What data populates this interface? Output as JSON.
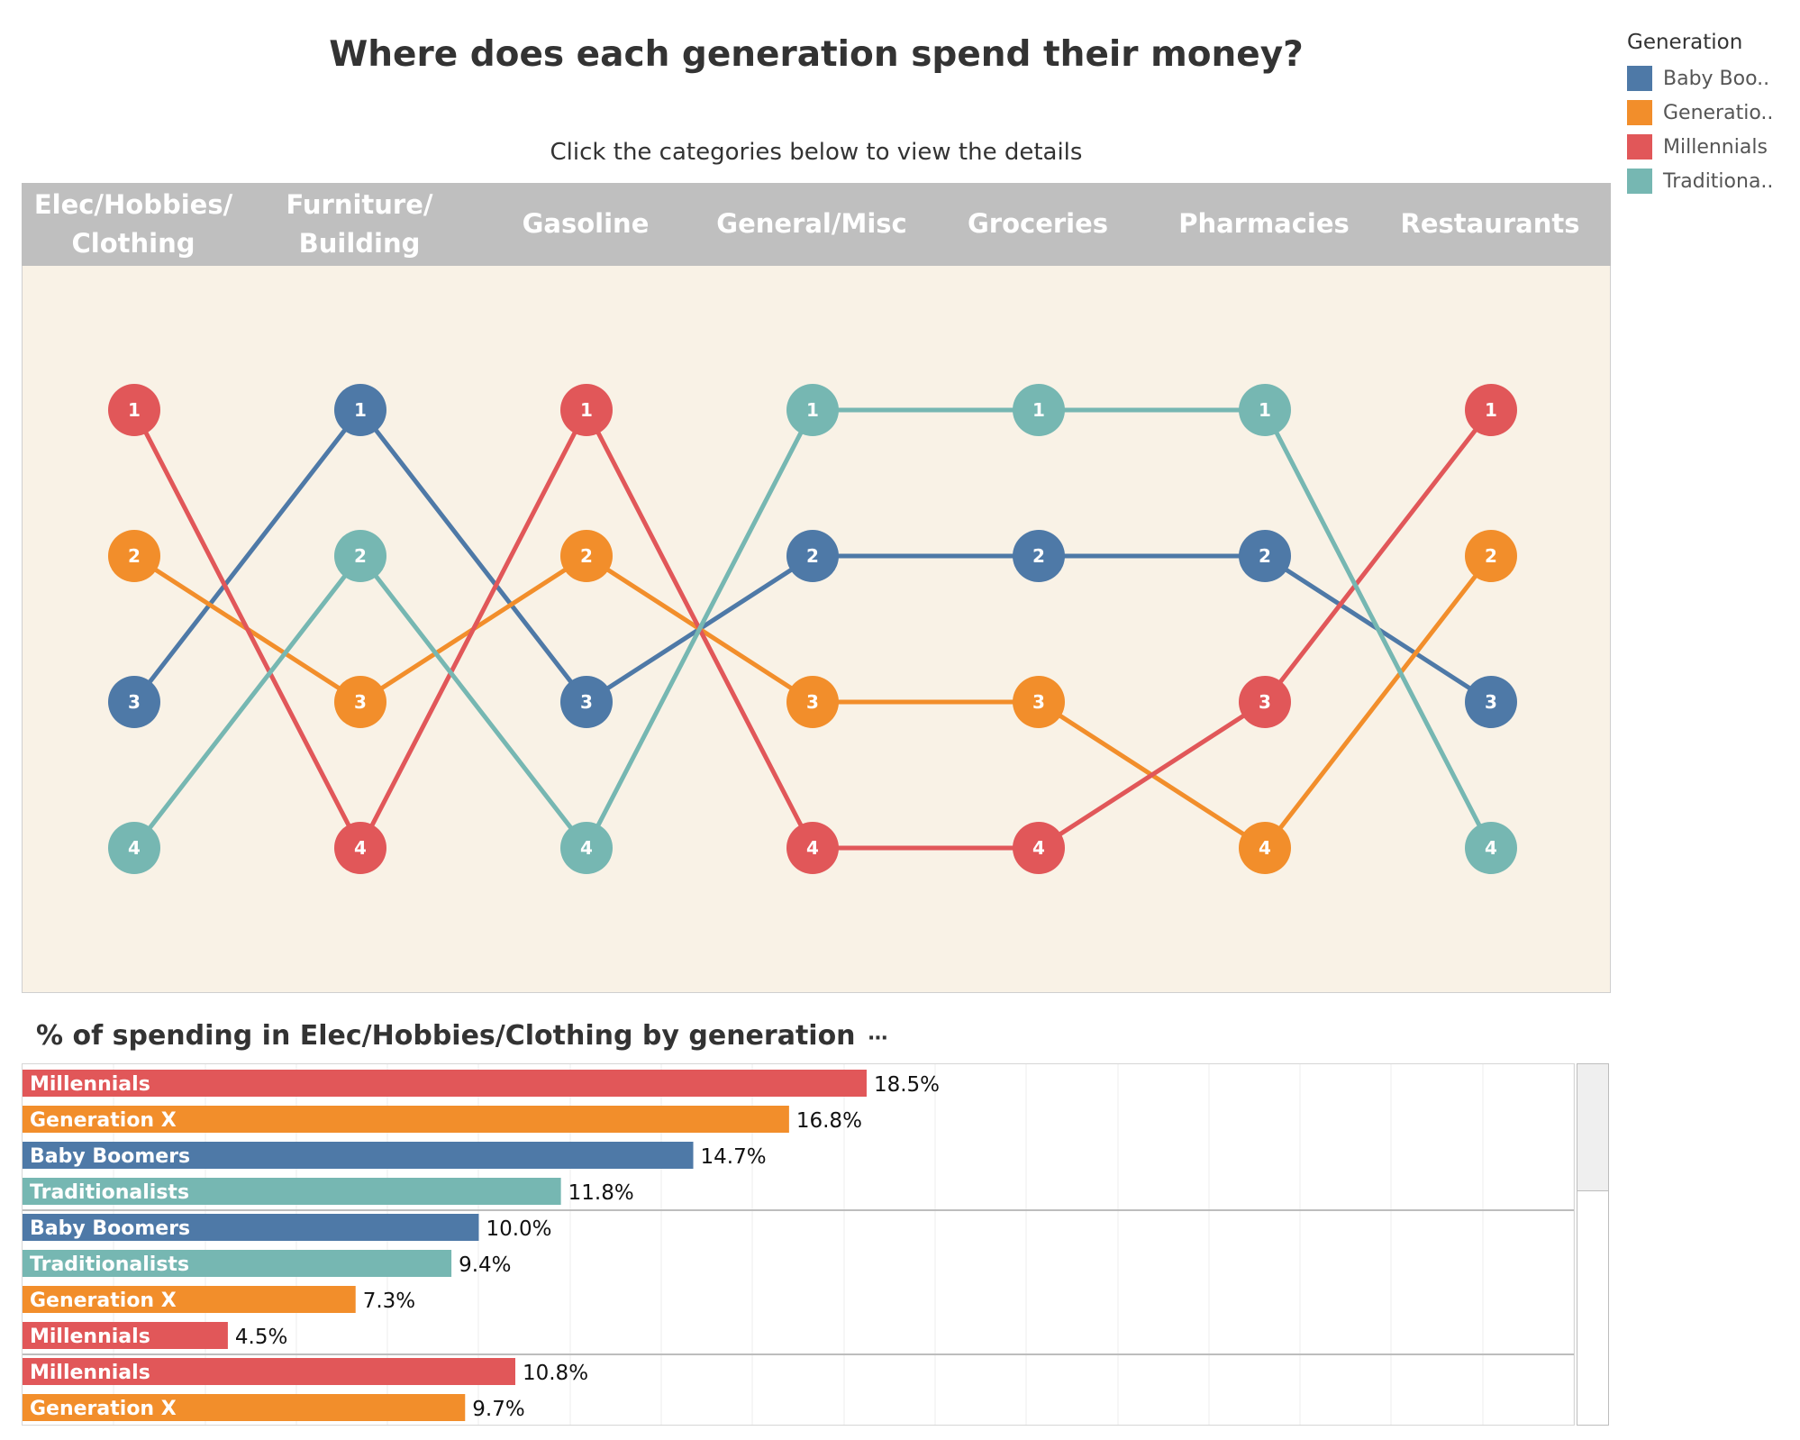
{
  "title": "Where does each generation spend their money?",
  "subtitle": "Click the categories below to view the details",
  "legend": {
    "title": "Generation",
    "items": [
      {
        "label": "Baby Boo..",
        "color": "#4e79a7"
      },
      {
        "label": "Generatio..",
        "color": "#f28e2b"
      },
      {
        "label": "Millennials",
        "color": "#e15759"
      },
      {
        "label": "Traditiona..",
        "color": "#76b7b2"
      }
    ]
  },
  "chart_data": [
    {
      "type": "line",
      "categories": [
        "Elec/Hobbies/\nClothing",
        "Furniture/\nBuilding",
        "Gasoline",
        "General/Misc",
        "Groceries",
        "Pharmacies",
        "Restaurants"
      ],
      "y_reversed": true,
      "ylim": [
        1,
        4
      ],
      "series": [
        {
          "name": "Baby Boomers",
          "color": "#4e79a7",
          "values": [
            3,
            1,
            3,
            2,
            2,
            2,
            3
          ]
        },
        {
          "name": "Generation X",
          "color": "#f28e2b",
          "values": [
            2,
            3,
            2,
            3,
            3,
            4,
            2
          ]
        },
        {
          "name": "Millennials",
          "color": "#e15759",
          "values": [
            1,
            4,
            1,
            4,
            4,
            3,
            1
          ]
        },
        {
          "name": "Traditionalists",
          "color": "#76b7b2",
          "values": [
            4,
            2,
            4,
            1,
            1,
            1,
            4
          ]
        }
      ]
    },
    {
      "type": "bar",
      "orientation": "horizontal",
      "title": "% of spending in Elec/Hobbies/Clothing by generation",
      "menu_glyph": "⋯",
      "xlim": [
        0,
        34
      ],
      "grid": true,
      "groups": [
        {
          "bars": [
            {
              "label": "Millennials",
              "value": 18.5,
              "display": "18.5%",
              "color": "#e15759"
            },
            {
              "label": "Generation X",
              "value": 16.8,
              "display": "16.8%",
              "color": "#f28e2b"
            },
            {
              "label": "Baby Boomers",
              "value": 14.7,
              "display": "14.7%",
              "color": "#4e79a7"
            },
            {
              "label": "Traditionalists",
              "value": 11.8,
              "display": "11.8%",
              "color": "#76b7b2"
            }
          ]
        },
        {
          "bars": [
            {
              "label": "Baby Boomers",
              "value": 10.0,
              "display": "10.0%",
              "color": "#4e79a7"
            },
            {
              "label": "Traditionalists",
              "value": 9.4,
              "display": "9.4%",
              "color": "#76b7b2"
            },
            {
              "label": "Generation X",
              "value": 7.3,
              "display": "7.3%",
              "color": "#f28e2b"
            },
            {
              "label": "Millennials",
              "value": 4.5,
              "display": "4.5%",
              "color": "#e15759"
            }
          ]
        },
        {
          "bars": [
            {
              "label": "Millennials",
              "value": 10.8,
              "display": "10.8%",
              "color": "#e15759"
            },
            {
              "label": "Generation X",
              "value": 9.7,
              "display": "9.7%",
              "color": "#f28e2b"
            }
          ]
        }
      ]
    }
  ]
}
